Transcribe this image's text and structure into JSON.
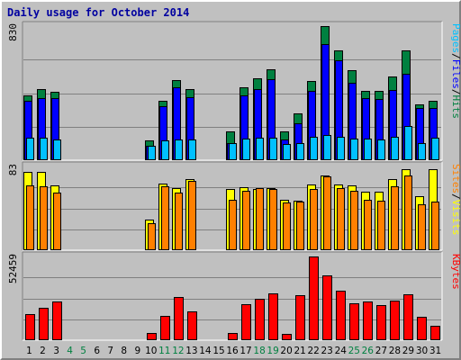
{
  "chart_data": {
    "type": "bar",
    "title": "Daily usage for October 2014",
    "days": [
      "1",
      "2",
      "3",
      "4",
      "5",
      "6",
      "7",
      "8",
      "9",
      "10",
      "11",
      "12",
      "13",
      "14",
      "15",
      "16",
      "17",
      "18",
      "19",
      "20",
      "21",
      "22",
      "23",
      "24",
      "25",
      "26",
      "27",
      "28",
      "29",
      "30",
      "31"
    ],
    "weekend_days": [
      "4",
      "5",
      "11",
      "12",
      "18",
      "19",
      "25",
      "26"
    ],
    "colors": {
      "hits": "#008040",
      "files": "#0000ff",
      "pages": "#00c0ff",
      "visits": "#ffff00",
      "sites": "#ff8000",
      "kbytes": "#ff0000",
      "title": "#0000a0",
      "weekday_label": "#000000",
      "weekend_label": "#008040",
      "panel_bg": "#c0c0c0"
    },
    "panels": [
      {
        "name": "hits-files-pages",
        "ymax_label": "830",
        "ymax": 830,
        "legend": [
          {
            "label": "Hits",
            "color": "#008040"
          },
          {
            "label": "Files",
            "color": "#0000ff"
          },
          {
            "label": "Pages",
            "color": "#00c0ff"
          }
        ],
        "separators": [
          "/",
          "/"
        ],
        "series": [
          {
            "name": "Hits",
            "values": [
              400,
              438,
              422,
              0,
              0,
              0,
              0,
              0,
              0,
              117,
              362,
              491,
              438,
              0,
              0,
              176,
              448,
              507,
              560,
              173,
              287,
              490,
              830,
              676,
              557,
              429,
              427,
              515,
              679,
              344,
              366
            ]
          },
          {
            "name": "Files",
            "values": [
              365,
              384,
              383,
              0,
              0,
              0,
              0,
              0,
              0,
              83,
              329,
              447,
              386,
              0,
              0,
              103,
              397,
              436,
              500,
              123,
              227,
              427,
              718,
              615,
              478,
              384,
              377,
              432,
              535,
              321,
              322
            ]
          },
          {
            "name": "Pages",
            "values": [
              137,
              136,
              123,
              0,
              0,
              0,
              0,
              0,
              0,
              83,
              117,
              123,
              121,
              0,
              0,
              101,
              131,
              132,
              137,
              98,
              103,
              139,
              149,
              139,
              129,
              131,
              125,
              138,
              208,
              100,
              136
            ]
          }
        ]
      },
      {
        "name": "visits-sites",
        "ymax_label": "83",
        "ymax": 83,
        "legend": [
          {
            "label": "Visits",
            "color": "#ffff00"
          },
          {
            "label": "Sites",
            "color": "#ff8000"
          }
        ],
        "separators": [
          "/"
        ],
        "series": [
          {
            "name": "Visits",
            "values": [
              78,
              78,
              64,
              0,
              0,
              0,
              0,
              0,
              0,
              30,
              66,
              61,
              70,
              0,
              0,
              60,
              62,
              60,
              61,
              50,
              49,
              65,
              74,
              65,
              64,
              58,
              58,
              70,
              80,
              53,
              80
            ]
          },
          {
            "name": "Sites",
            "values": [
              64,
              63,
              57,
              0,
              0,
              0,
              0,
              0,
              0,
              26,
              63,
              57,
              69,
              0,
              0,
              50,
              59,
              61,
              60,
              47,
              48,
              60,
              73,
              61,
              59,
              50,
              49,
              63,
              74,
              45,
              48
            ]
          }
        ]
      },
      {
        "name": "kbytes",
        "ymax_label": "52459",
        "ymax": 52459,
        "legend": [
          {
            "label": "KBytes",
            "color": "#ff0000"
          }
        ],
        "separators": [],
        "series": [
          {
            "name": "KBytes",
            "values": [
              16000,
              19800,
              23800,
              0,
              0,
              0,
              0,
              0,
              0,
              3800,
              14600,
              26600,
              17600,
              0,
              0,
              4200,
              22000,
              25400,
              29000,
              3500,
              28200,
              52459,
              40400,
              30800,
              23000,
              24000,
              21700,
              24700,
              28500,
              14000,
              8300
            ]
          }
        ]
      }
    ]
  }
}
